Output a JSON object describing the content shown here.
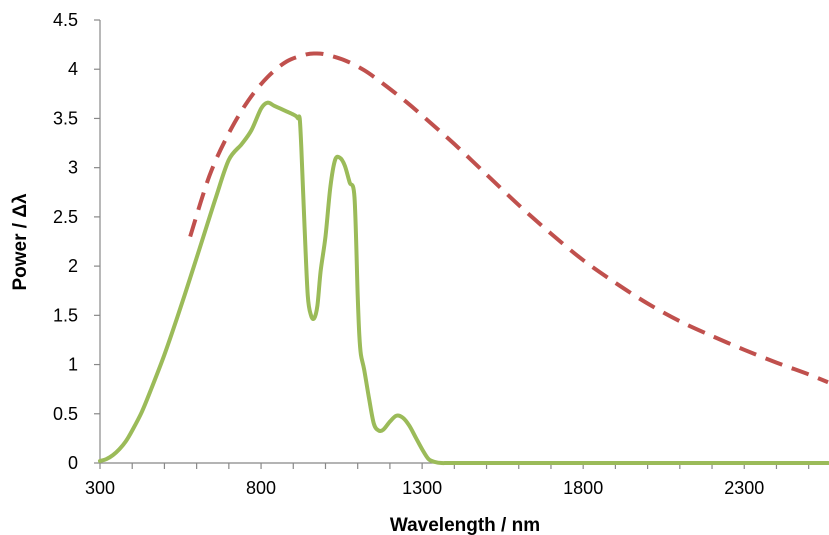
{
  "chart_data": {
    "type": "line",
    "title": "",
    "xlabel": "Wavelength / nm",
    "ylabel": "Power  / Δλ",
    "xlim": [
      300,
      2560
    ],
    "ylim": [
      0,
      4.5
    ],
    "x_ticks": [
      300,
      800,
      1300,
      1800,
      2300
    ],
    "x_tick_labels": [
      "300",
      "800",
      "1300",
      "1800",
      "2300"
    ],
    "y_ticks": [
      0,
      0.5,
      1,
      1.5,
      2,
      2.5,
      3,
      3.5,
      4,
      4.5
    ],
    "y_tick_labels": [
      "0",
      "0.5",
      "1",
      "1.5",
      "2",
      "2.5",
      "3",
      "3.5",
      "4",
      "4.5"
    ],
    "grid": false,
    "legend": "none",
    "series": [
      {
        "style": "dashed",
        "color": "#c0504d",
        "x": [
          580,
          640,
          700,
          760,
          820,
          880,
          940,
          970,
          1000,
          1060,
          1120,
          1180,
          1250,
          1300,
          1400,
          1500,
          1600,
          1700,
          1800,
          1900,
          2000,
          2100,
          2200,
          2300,
          2400,
          2500,
          2560
        ],
        "y": [
          2.3,
          2.92,
          3.35,
          3.68,
          3.92,
          4.08,
          4.15,
          4.16,
          4.15,
          4.09,
          3.99,
          3.85,
          3.67,
          3.53,
          3.24,
          2.93,
          2.62,
          2.33,
          2.06,
          1.83,
          1.62,
          1.44,
          1.29,
          1.15,
          1.02,
          0.9,
          0.82
        ]
      },
      {
        "style": "solid",
        "color": "#9bbb59",
        "x": [
          300,
          320,
          340,
          360,
          380,
          400,
          430,
          460,
          500,
          540,
          580,
          620,
          660,
          700,
          740,
          770,
          800,
          820,
          840,
          860,
          880,
          900,
          910,
          915,
          920,
          925,
          935,
          945,
          955,
          965,
          975,
          985,
          1000,
          1015,
          1030,
          1045,
          1060,
          1075,
          1090,
          1100,
          1105,
          1110,
          1120,
          1135,
          1150,
          1165,
          1180,
          1200,
          1220,
          1240,
          1260,
          1280,
          1300,
          1320,
          1340,
          1360,
          1400,
          1600,
          1800,
          2000,
          2200,
          2400,
          2560
        ],
        "y": [
          0.02,
          0.04,
          0.08,
          0.14,
          0.22,
          0.33,
          0.52,
          0.76,
          1.1,
          1.48,
          1.88,
          2.29,
          2.7,
          3.08,
          3.24,
          3.38,
          3.6,
          3.66,
          3.63,
          3.6,
          3.57,
          3.54,
          3.52,
          3.5,
          3.5,
          3.2,
          2.4,
          1.7,
          1.5,
          1.47,
          1.6,
          1.95,
          2.3,
          2.8,
          3.08,
          3.1,
          3.02,
          2.85,
          2.7,
          1.7,
          1.3,
          1.1,
          0.95,
          0.66,
          0.4,
          0.33,
          0.34,
          0.42,
          0.48,
          0.46,
          0.38,
          0.26,
          0.14,
          0.04,
          0.01,
          0.0,
          0.0,
          0.0,
          0.0,
          0.0,
          0.0,
          0.0,
          0.0
        ]
      }
    ]
  }
}
